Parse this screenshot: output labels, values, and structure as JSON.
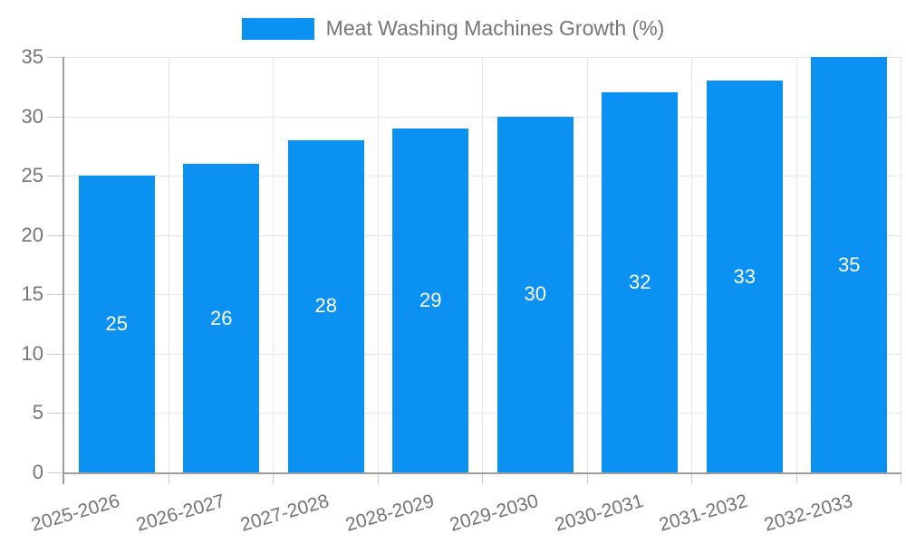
{
  "legend": {
    "label": "Meat Washing Machines Growth (%)"
  },
  "chart_data": {
    "type": "bar",
    "title": "Meat Washing Machines Growth (%)",
    "categories": [
      "2025-2026",
      "2026-2027",
      "2027-2028",
      "2028-2029",
      "2029-2030",
      "2030-2031",
      "2031-2032",
      "2032-2033"
    ],
    "values": [
      25,
      26,
      28,
      29,
      30,
      32,
      33,
      35
    ],
    "xlabel": "",
    "ylabel": "",
    "ylim": [
      0,
      35
    ],
    "yticks": [
      0,
      5,
      10,
      15,
      20,
      25,
      30,
      35
    ],
    "grid": true,
    "legend_position": "top-center",
    "value_labels_inside_bars": true,
    "colors": {
      "bar": "#0a91f2",
      "axis_line": "#9e9e9e",
      "gridline": "#e6e6e6",
      "tick": "#cccccc",
      "axis_text": "#757575",
      "value_label_text": "#ffffff",
      "background": "#ffffff"
    }
  }
}
